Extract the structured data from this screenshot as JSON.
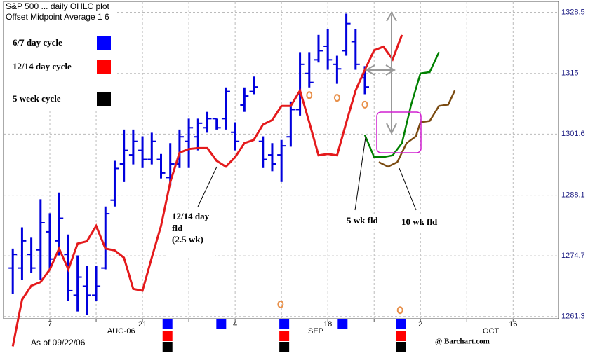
{
  "chart_data": {
    "type": "ohlc",
    "title": "S&P 500 ... daily OHLC plot",
    "subtitle": "Offset Midpoint Average   1   6",
    "as_of": "As of 09/22/06",
    "credit": "@ Barchart.com",
    "color": "#0000dd",
    "x": [
      1,
      2,
      3,
      4,
      5,
      6,
      7,
      8,
      9,
      10,
      11,
      12,
      13,
      14,
      15,
      16,
      17,
      18,
      19,
      20,
      21,
      22,
      23,
      24,
      25,
      26,
      27,
      28,
      29,
      30,
      31,
      32,
      33,
      34,
      35,
      36,
      37,
      38,
      39
    ],
    "open": [
      1272,
      1272,
      1275,
      1276,
      1280,
      1278,
      1275,
      1266,
      1268,
      1266,
      1272,
      1287,
      1295,
      1297,
      1298,
      1296,
      1296,
      1292,
      1295,
      1300,
      1301,
      1303,
      1305,
      1305,
      1302,
      1308,
      1311,
      1300,
      1297,
      1297,
      1301,
      1307,
      1315,
      1318,
      1321,
      1317,
      1320,
      1322,
      1314
    ],
    "high": [
      1276.3,
      1281.0,
      1278.7,
      1287.2,
      1284.1,
      1288.7,
      1279.4,
      1274.8,
      1272.5,
      1272.5,
      1285.6,
      1295.7,
      1302.6,
      1302.6,
      1301.1,
      1301.9,
      1297.2,
      1299.6,
      1302.6,
      1305.0,
      1305.0,
      1306.5,
      1305.0,
      1311.9,
      1304.2,
      1311.9,
      1314.3,
      1301.1,
      1299.6,
      1300.3,
      1308.8,
      1319.7,
      1319.7,
      1323.5,
      1324.8,
      1318.9,
      1328.2,
      1324.8,
      1316.6
    ],
    "low": [
      1266.3,
      1269.4,
      1270.9,
      1269.4,
      1271.7,
      1274.8,
      1264.7,
      1262.4,
      1261.6,
      1264.7,
      1271.7,
      1285.6,
      1291.0,
      1294.9,
      1294.1,
      1294.9,
      1291.8,
      1290.3,
      1294.1,
      1294.1,
      1298.0,
      1301.9,
      1302.6,
      1302.6,
      1298.0,
      1306.5,
      1310.4,
      1294.1,
      1293.4,
      1291.0,
      1298.8,
      1305.7,
      1311.9,
      1317.4,
      1315.8,
      1312.7,
      1318.9,
      1315.8,
      1310.4
    ],
    "close": [
      1275,
      1278,
      1272,
      1282,
      1274,
      1283,
      1267,
      1270,
      1266,
      1268,
      1284,
      1294,
      1298,
      1300,
      1296,
      1300,
      1293,
      1295,
      1301,
      1303,
      1304,
      1305,
      1303,
      1311,
      1300,
      1310,
      1312,
      1296,
      1295,
      1299,
      1307,
      1317,
      1313,
      1320,
      1318,
      1316,
      1326,
      1317,
      1312
    ],
    "lines": [
      {
        "color": "#e41a1c",
        "x": [
          1,
          2,
          3,
          4,
          5,
          6,
          7,
          8,
          9,
          10,
          11,
          12,
          13,
          14,
          15,
          16,
          17,
          18,
          19,
          20,
          21,
          22,
          23,
          24,
          25,
          26,
          27,
          28,
          29,
          30,
          31,
          32,
          33,
          34,
          35,
          36,
          37,
          38,
          39,
          40,
          41,
          42,
          43
        ],
        "values": [
          1254.7,
          1265.0,
          1268.1,
          1268.9,
          1271.7,
          1276.3,
          1271.7,
          1277.4,
          1277.9,
          1281.3,
          1276.3,
          1275.9,
          1274.3,
          1267.4,
          1267.0,
          1274.3,
          1281.3,
          1291.0,
          1297.5,
          1298.3,
          1298.5,
          1298.5,
          1295.7,
          1294.4,
          1296.5,
          1299.6,
          1300.3,
          1303.7,
          1304.7,
          1307.8,
          1307.8,
          1311.2,
          1304.2,
          1296.9,
          1297.2,
          1296.9,
          1304.2,
          1311.2,
          1315.8,
          1320.1,
          1320.9,
          1318.1,
          1323.5
        ]
      },
      {
        "color": "#008000",
        "x": [
          39,
          40,
          41,
          42,
          43,
          44,
          45,
          46,
          47
        ],
        "values": [
          1301.4,
          1296.5,
          1296.5,
          1296.9,
          1299.6,
          1308.1,
          1315.0,
          1315.3,
          1319.7
        ]
      },
      {
        "color": "#7a4a10",
        "x": [
          40.5,
          41.5,
          42.5,
          43.5,
          44.5,
          45,
          46,
          47,
          48,
          48.7
        ],
        "values": [
          1295.4,
          1294.4,
          1295.4,
          1299.6,
          1301.1,
          1304.2,
          1304.5,
          1307.8,
          1308.1,
          1311.2
        ]
      }
    ],
    "points": {
      "color": "#e8904a",
      "x": [
        33,
        36,
        39,
        29.9,
        42.8
      ],
      "values": [
        1310.2,
        1309.6,
        1308.1,
        1264.0,
        1262.7
      ]
    },
    "cycles": [
      {
        "name": "6/7 day cycle",
        "color": "#0000ff",
        "x": [
          17.7,
          23.5,
          30.3,
          36.6,
          42.9
        ]
      },
      {
        "name": "12/14 day cycle",
        "color": "#ff0000",
        "x": [
          17.7,
          30.3,
          42.9
        ]
      },
      {
        "name": "5 week cycle",
        "color": "#000000",
        "x": [
          17.7,
          30.3,
          42.9
        ]
      }
    ],
    "annotations": [
      "12/14 day",
      "fld",
      "(2.5 wk)",
      "5 wk fld",
      "10 wk fld"
    ],
    "xlim": [
      0,
      59.9
    ],
    "xticks": [
      {
        "value": 5,
        "label": "7"
      },
      10,
      {
        "value": 15,
        "label": "21"
      },
      20,
      {
        "value": 25,
        "label": "4"
      },
      30,
      {
        "value": 35,
        "label": "18"
      },
      40,
      {
        "value": 45,
        "label": "2"
      },
      50,
      {
        "value": 55,
        "label": "16"
      }
    ],
    "month_labels": [
      {
        "value": 12.7,
        "label": "AUG-06"
      },
      {
        "value": 33.7,
        "label": "SEP"
      },
      {
        "value": 52.6,
        "label": "OCT"
      }
    ],
    "ylim": [
      1260.8,
      1330.9
    ],
    "yticks": [
      1261.3,
      1274.7,
      1288.1,
      1301.6,
      1315,
      1328.5
    ],
    "grid": true
  }
}
